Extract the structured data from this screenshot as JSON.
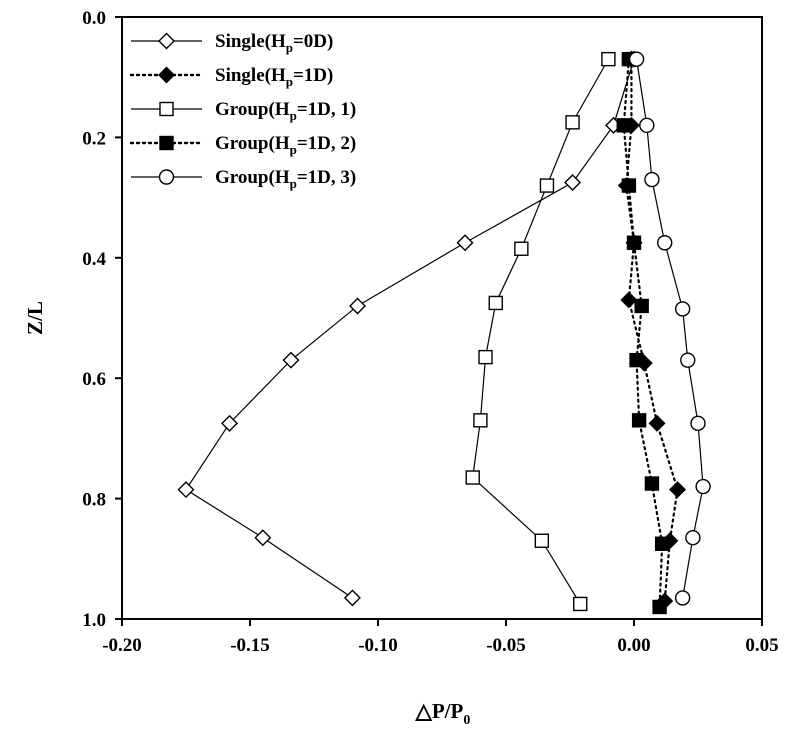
{
  "chart_data": {
    "type": "line",
    "xlabel": "△P/P",
    "xlabel_sub": "0",
    "ylabel": "Z/L",
    "xlim": [
      -0.2,
      0.05
    ],
    "ylim": [
      0.0,
      1.0
    ],
    "y_inverted": true,
    "x_ticks": [
      -0.2,
      -0.15,
      -0.1,
      -0.05,
      0.0,
      0.05
    ],
    "x_tick_labels": [
      "-0.20",
      "-0.15",
      "-0.10",
      "-0.05",
      "0.00",
      "0.05"
    ],
    "y_ticks": [
      0.0,
      0.2,
      0.4,
      0.6,
      0.8,
      1.0
    ],
    "y_tick_labels": [
      "0.0",
      "0.2",
      "0.4",
      "0.6",
      "0.8",
      "1.0"
    ],
    "grid": false,
    "legend_position": "top-left",
    "series": [
      {
        "legend_main": "Single(H",
        "legend_sub": "p",
        "legend_rest": "=0D)",
        "marker": "diamond-open",
        "line": "solid",
        "points": [
          {
            "x": 0.0,
            "y": 0.07
          },
          {
            "x": -0.008,
            "y": 0.18
          },
          {
            "x": -0.024,
            "y": 0.275
          },
          {
            "x": -0.066,
            "y": 0.375
          },
          {
            "x": -0.108,
            "y": 0.48
          },
          {
            "x": -0.134,
            "y": 0.57
          },
          {
            "x": -0.158,
            "y": 0.675
          },
          {
            "x": -0.175,
            "y": 0.785
          },
          {
            "x": -0.145,
            "y": 0.865
          },
          {
            "x": -0.11,
            "y": 0.965
          }
        ]
      },
      {
        "legend_main": "Single(H",
        "legend_sub": "p",
        "legend_rest": "=1D)",
        "marker": "diamond-filled",
        "line": "dotted",
        "points": [
          {
            "x": -0.001,
            "y": 0.07
          },
          {
            "x": -0.001,
            "y": 0.18
          },
          {
            "x": -0.003,
            "y": 0.28
          },
          {
            "x": 0.0,
            "y": 0.375
          },
          {
            "x": -0.002,
            "y": 0.47
          },
          {
            "x": 0.004,
            "y": 0.575
          },
          {
            "x": 0.009,
            "y": 0.675
          },
          {
            "x": 0.017,
            "y": 0.785
          },
          {
            "x": 0.014,
            "y": 0.87
          },
          {
            "x": 0.012,
            "y": 0.97
          }
        ]
      },
      {
        "legend_main": "Group(H",
        "legend_sub": "p",
        "legend_rest": "=1D, 1)",
        "marker": "square-open",
        "line": "solid",
        "points": [
          {
            "x": -0.01,
            "y": 0.07
          },
          {
            "x": -0.024,
            "y": 0.175
          },
          {
            "x": -0.034,
            "y": 0.28
          },
          {
            "x": -0.044,
            "y": 0.385
          },
          {
            "x": -0.054,
            "y": 0.475
          },
          {
            "x": -0.058,
            "y": 0.565
          },
          {
            "x": -0.06,
            "y": 0.67
          },
          {
            "x": -0.063,
            "y": 0.765
          },
          {
            "x": -0.036,
            "y": 0.87
          },
          {
            "x": -0.021,
            "y": 0.975
          }
        ]
      },
      {
        "legend_main": "Group(H",
        "legend_sub": "p",
        "legend_rest": "=1D, 2)",
        "marker": "square-filled",
        "line": "dotted",
        "points": [
          {
            "x": -0.002,
            "y": 0.07
          },
          {
            "x": -0.004,
            "y": 0.18
          },
          {
            "x": -0.002,
            "y": 0.28
          },
          {
            "x": 0.0,
            "y": 0.375
          },
          {
            "x": 0.003,
            "y": 0.48
          },
          {
            "x": 0.001,
            "y": 0.57
          },
          {
            "x": 0.002,
            "y": 0.67
          },
          {
            "x": 0.007,
            "y": 0.775
          },
          {
            "x": 0.011,
            "y": 0.875
          },
          {
            "x": 0.01,
            "y": 0.98
          }
        ]
      },
      {
        "legend_main": "Group(H",
        "legend_sub": "p",
        "legend_rest": "=1D, 3)",
        "marker": "circle-open",
        "line": "solid",
        "points": [
          {
            "x": 0.001,
            "y": 0.07
          },
          {
            "x": 0.005,
            "y": 0.18
          },
          {
            "x": 0.007,
            "y": 0.27
          },
          {
            "x": 0.012,
            "y": 0.375
          },
          {
            "x": 0.019,
            "y": 0.485
          },
          {
            "x": 0.021,
            "y": 0.57
          },
          {
            "x": 0.025,
            "y": 0.675
          },
          {
            "x": 0.027,
            "y": 0.78
          },
          {
            "x": 0.023,
            "y": 0.865
          },
          {
            "x": 0.019,
            "y": 0.965
          }
        ]
      }
    ]
  }
}
